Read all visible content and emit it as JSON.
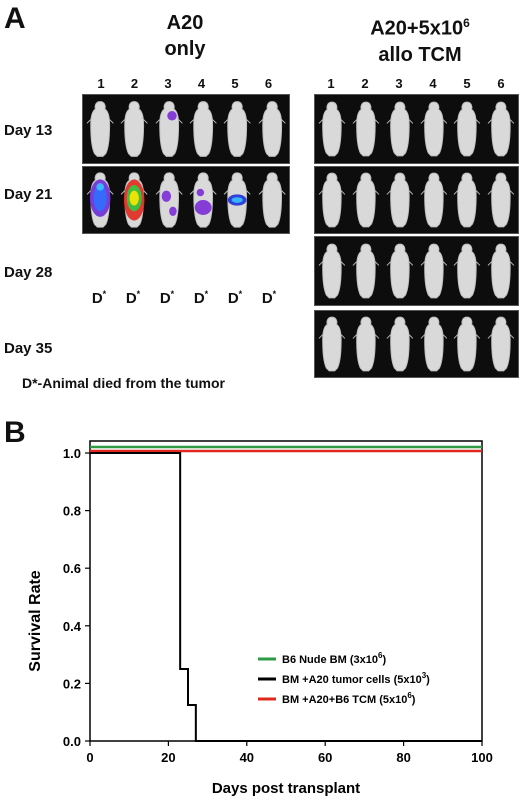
{
  "panel_a": {
    "letter": "A",
    "group_left": {
      "line1": "A20",
      "line2": "only"
    },
    "group_right": {
      "line1": "A20+5x10",
      "line1_sup": "6",
      "line2": "allo TCM"
    },
    "column_numbers": [
      "1",
      "2",
      "3",
      "4",
      "5",
      "6"
    ],
    "days": [
      "Day 13",
      "Day 21",
      "Day 28",
      "Day 35"
    ],
    "death_mark": "D",
    "death_mark_sup": "*",
    "footnote": "D*-Animal died from the tumor"
  },
  "panel_b": {
    "letter": "B",
    "legend": [
      {
        "label": "B6 Nude BM (3x10",
        "sup": "6",
        "tail": ")",
        "color": "#2e9a44"
      },
      {
        "label": "BM +A20 tumor cells (5x10",
        "sup": "3",
        "tail": ")",
        "color": "#000000"
      },
      {
        "label": "BM +A20+B6 TCM (5x10",
        "sup": "6",
        "tail": ")",
        "color": "#e0281e"
      }
    ]
  },
  "chart_data": {
    "type": "line",
    "xlabel": "Days post transplant",
    "ylabel": "Survival Rate",
    "xlim": [
      0,
      100
    ],
    "ylim": [
      0,
      1.0
    ],
    "xticks": [
      0,
      20,
      40,
      60,
      80,
      100
    ],
    "yticks": [
      0.0,
      0.2,
      0.4,
      0.6,
      0.8,
      1.0
    ],
    "step": true,
    "series": [
      {
        "name": "B6 Nude BM (3x10^6)",
        "color": "#2e9a44",
        "x": [
          0,
          100
        ],
        "y": [
          1.0,
          1.0
        ]
      },
      {
        "name": "BM +A20 tumor cells (5x10^3)",
        "color": "#000000",
        "x": [
          0,
          23,
          25,
          27,
          100
        ],
        "y": [
          1.0,
          0.25,
          0.125,
          0.0,
          0.0
        ]
      },
      {
        "name": "BM +A20+B6 TCM (5x10^6)",
        "color": "#e0281e",
        "x": [
          0,
          100
        ],
        "y": [
          1.0,
          1.0
        ]
      }
    ]
  }
}
